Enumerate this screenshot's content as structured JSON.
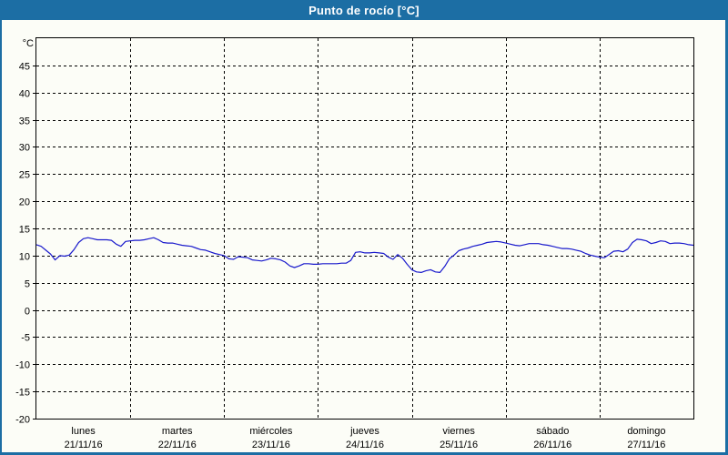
{
  "window": {
    "title": "Punto de rocío [°C]"
  },
  "colors": {
    "frame_blue": "#1c6ea4",
    "title_text": "#ffffff",
    "background": "#fcfdf7",
    "axis_and_grid": "#000000",
    "series_line": "#1a1acc"
  },
  "chart_data": {
    "type": "line",
    "title": "Punto de rocío [°C]",
    "ylabel": "°C",
    "ylim": [
      -20,
      50
    ],
    "y_ticks": [
      45,
      40,
      35,
      30,
      25,
      20,
      15,
      10,
      5,
      0,
      -5,
      -10,
      -15,
      -20
    ],
    "grid": "dashed",
    "legend": "none",
    "x_axis": {
      "unit": "days",
      "days": [
        {
          "name": "lunes",
          "date": "21/11/16"
        },
        {
          "name": "martes",
          "date": "22/11/16"
        },
        {
          "name": "miércoles",
          "date": "23/11/16"
        },
        {
          "name": "jueves",
          "date": "24/11/16"
        },
        {
          "name": "viernes",
          "date": "25/11/16"
        },
        {
          "name": "sábado",
          "date": "26/11/16"
        },
        {
          "name": "domingo",
          "date": "27/11/16"
        }
      ]
    },
    "series": [
      {
        "name": "Punto de rocío",
        "color": "#1a1acc",
        "start_day": 0,
        "step_days": 0.05,
        "values": [
          12.0,
          11.7,
          11.0,
          10.3,
          9.2,
          10.0,
          9.9,
          10.1,
          11.1,
          12.4,
          13.1,
          13.3,
          13.1,
          12.9,
          12.9,
          12.9,
          12.8,
          12.1,
          11.7,
          12.6,
          12.7,
          12.8,
          12.8,
          12.9,
          13.1,
          13.3,
          12.9,
          12.4,
          12.3,
          12.3,
          12.1,
          11.9,
          11.8,
          11.7,
          11.4,
          11.1,
          11.0,
          10.7,
          10.4,
          10.2,
          10.0,
          9.4,
          9.3,
          9.8,
          9.7,
          9.6,
          9.2,
          9.1,
          9.0,
          9.2,
          9.5,
          9.4,
          9.2,
          8.8,
          8.1,
          7.8,
          8.1,
          8.5,
          8.5,
          8.4,
          8.4,
          8.5,
          8.5,
          8.5,
          8.5,
          8.6,
          8.6,
          9.1,
          10.6,
          10.7,
          10.5,
          10.5,
          10.6,
          10.5,
          10.4,
          9.7,
          9.3,
          10.2,
          9.5,
          8.4,
          7.4,
          7.0,
          6.9,
          7.2,
          7.4,
          7.0,
          6.9,
          8.0,
          9.4,
          10.1,
          10.9,
          11.2,
          11.4,
          11.7,
          11.9,
          12.1,
          12.4,
          12.5,
          12.6,
          12.5,
          12.3,
          12.1,
          11.9,
          11.8,
          12.0,
          12.2,
          12.2,
          12.2,
          12.0,
          11.9,
          11.7,
          11.5,
          11.3,
          11.3,
          11.2,
          11.0,
          10.8,
          10.4,
          10.1,
          9.9,
          9.7,
          9.6,
          10.2,
          10.8,
          10.9,
          10.7,
          11.2,
          12.4,
          13.0,
          12.9,
          12.7,
          12.2,
          12.4,
          12.7,
          12.6,
          12.2,
          12.3,
          12.3,
          12.2,
          12.0,
          11.9
        ]
      }
    ]
  }
}
